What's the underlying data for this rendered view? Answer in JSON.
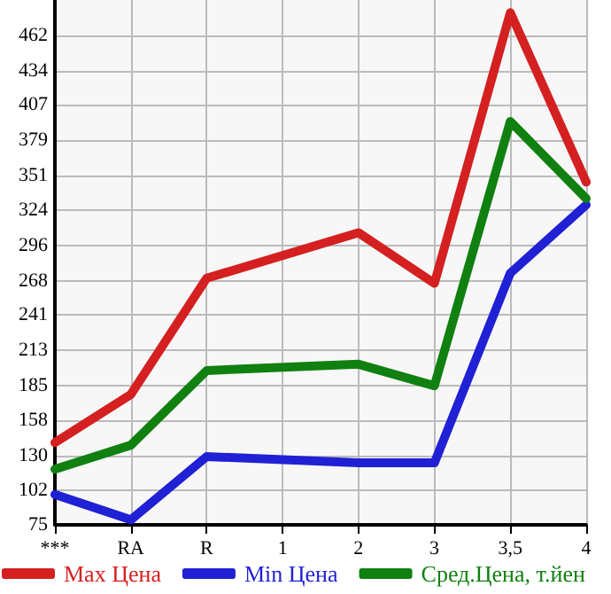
{
  "chart_data": {
    "type": "line",
    "categories": [
      "***",
      "RA",
      "R",
      "1",
      "2",
      "3",
      "3,5",
      "4"
    ],
    "series": [
      {
        "name": "Max Цена",
        "color": "#d42020",
        "values": [
          140,
          178,
          270,
          null,
          306,
          266,
          480,
          346
        ]
      },
      {
        "name": "Min Цена",
        "color": "#2020d4",
        "values": [
          99,
          79,
          129,
          null,
          124,
          124,
          274,
          328
        ]
      },
      {
        "name": "Сред.Цена, т.йен",
        "color": "#108010",
        "values": [
          119,
          138,
          197,
          null,
          202,
          185,
          394,
          333
        ]
      }
    ],
    "ylim": [
      75,
      490
    ],
    "yticks": [
      75,
      102,
      130,
      158,
      185,
      213,
      241,
      268,
      296,
      324,
      351,
      379,
      407,
      434,
      462
    ],
    "grid": true,
    "legend": "bottom",
    "marker": "none",
    "line_style": "solid"
  }
}
